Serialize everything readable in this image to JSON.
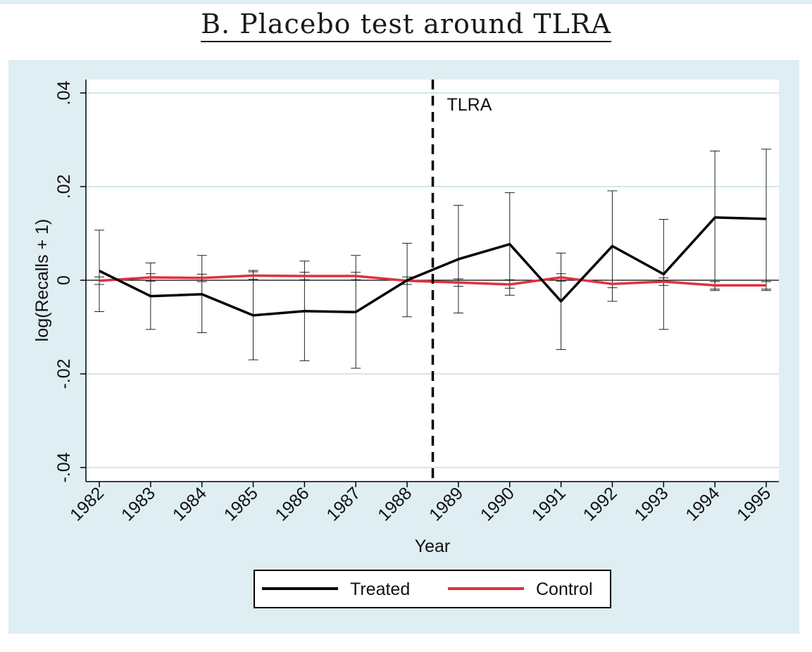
{
  "title": "B. Placebo test around TLRA",
  "chart_data": {
    "type": "line",
    "xlabel": "Year",
    "ylabel": "log(Recalls + 1)",
    "x": [
      1982,
      1983,
      1984,
      1985,
      1986,
      1987,
      1988,
      1989,
      1990,
      1991,
      1992,
      1993,
      1994,
      1995
    ],
    "ylim": [
      -0.042,
      0.043
    ],
    "yticks": [
      -0.04,
      -0.02,
      0,
      0.02,
      0.04
    ],
    "ytick_labels": [
      "-.04",
      "-.02",
      "0",
      ".02",
      ".04"
    ],
    "xtick_labels": [
      "1982",
      "1983",
      "1984",
      "1985",
      "1986",
      "1987",
      "1988",
      "1989",
      "1990",
      "1991",
      "1992",
      "1993",
      "1994",
      "1995"
    ],
    "grid": true,
    "vline": {
      "x": 1988.5,
      "label": "TLRA",
      "style": "dashed"
    },
    "legend": {
      "position": "bottom",
      "entries": [
        "Treated",
        "Control"
      ]
    },
    "series": [
      {
        "name": "Treated",
        "color": "#000000",
        "values": [
          0.002,
          -0.0034,
          -0.003,
          -0.0075,
          -0.0066,
          -0.0068,
          0.0,
          0.0045,
          0.0077,
          -0.0045,
          0.0073,
          0.0013,
          0.0134,
          0.0131
        ],
        "ci_low": [
          -0.0067,
          -0.0105,
          -0.0112,
          -0.017,
          -0.0172,
          -0.0188,
          -0.0078,
          -0.007,
          -0.0032,
          -0.0148,
          -0.0045,
          -0.0105,
          -0.0022,
          -0.0022
        ],
        "ci_high": [
          0.0107,
          0.0037,
          0.0053,
          0.0021,
          0.0041,
          0.0053,
          0.0079,
          0.016,
          0.0187,
          0.0058,
          0.0191,
          0.013,
          0.0276,
          0.028
        ]
      },
      {
        "name": "Control",
        "color": "#e03040",
        "values": [
          -0.0001,
          0.0006,
          0.0005,
          0.001,
          0.0009,
          0.0009,
          -0.0001,
          -0.0005,
          -0.0009,
          0.0006,
          -0.0008,
          -0.0003,
          -0.0011,
          -0.0011
        ],
        "ci_low": [
          -0.0009,
          -0.0002,
          -0.0003,
          0.0002,
          0.0001,
          0.0001,
          -0.0009,
          -0.0013,
          -0.0017,
          -0.0002,
          -0.0016,
          -0.0011,
          -0.0019,
          -0.0019
        ],
        "ci_high": [
          0.0007,
          0.0014,
          0.0013,
          0.0018,
          0.0017,
          0.0017,
          0.0007,
          0.0003,
          0.0001,
          0.0014,
          0.0,
          0.0005,
          -0.0003,
          -0.0003
        ]
      }
    ]
  }
}
